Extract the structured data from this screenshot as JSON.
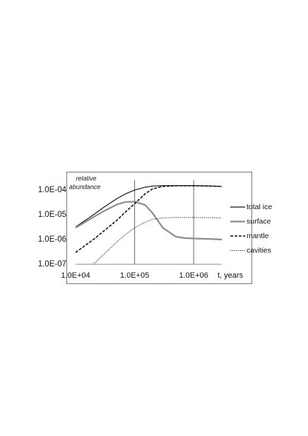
{
  "chart_data": {
    "type": "line",
    "y_label": [
      "relative",
      "abundance"
    ],
    "x_label": "t, years",
    "x_scale": "log",
    "y_scale": "log",
    "xlim": [
      10000,
      3000000
    ],
    "ylim": [
      1e-07,
      0.00025
    ],
    "xticks": [
      {
        "value": 10000,
        "label": "1.0E+04"
      },
      {
        "value": 100000,
        "label": "1.0E+05"
      },
      {
        "value": 1000000,
        "label": "1.0E+06"
      }
    ],
    "yticks": [
      {
        "value": 1e-07,
        "label": "1.0E-07"
      },
      {
        "value": 1e-06,
        "label": "1.0E-06"
      },
      {
        "value": 1e-05,
        "label": "1.0E-05"
      },
      {
        "value": 0.0001,
        "label": "1.0E-04"
      }
    ],
    "x_grid": true,
    "legend": "right",
    "x": [
      10000,
      20000,
      30000,
      50000,
      70000,
      100000,
      150000,
      200000,
      300000,
      500000,
      700000,
      1000000,
      2000000,
      3000000
    ],
    "series": [
      {
        "name": "total ice",
        "color": "#111111",
        "line_style": "solid",
        "line_width": 1.2,
        "values": [
          3.2e-06,
          1e-05,
          2e-05,
          4.5e-05,
          7e-05,
          0.0001,
          0.00013,
          0.000145,
          0.00015,
          0.00015,
          0.00015,
          0.00015,
          0.000145,
          0.00014
        ]
      },
      {
        "name": "surface",
        "color": "#8c8c8c",
        "line_style": "solid",
        "line_width": 2.2,
        "values": [
          3e-06,
          8e-06,
          1.4e-05,
          2.6e-05,
          3.3e-05,
          3.4e-05,
          2.5e-05,
          1.2e-05,
          3e-06,
          1.3e-06,
          1.15e-06,
          1.1e-06,
          1.05e-06,
          1e-06
        ]
      },
      {
        "name": "mantle",
        "color": "#111111",
        "line_style": "dashed",
        "line_width": 1.6,
        "values": [
          3e-07,
          1e-06,
          2.2e-06,
          6e-06,
          1.3e-05,
          2.8e-05,
          7e-05,
          0.00011,
          0.00014,
          0.00015,
          0.00015,
          0.00015,
          0.000145,
          0.00014
        ]
      },
      {
        "name": "cavities",
        "color": "#111111",
        "line_style": "dotted",
        "line_width": 1,
        "values": [
          null,
          1e-07,
          2.5e-07,
          8e-07,
          1.6e-06,
          3e-06,
          5e-06,
          6.5e-06,
          7.5e-06,
          7.8e-06,
          7.8e-06,
          7.8e-06,
          7.6e-06,
          7.5e-06
        ]
      }
    ]
  }
}
